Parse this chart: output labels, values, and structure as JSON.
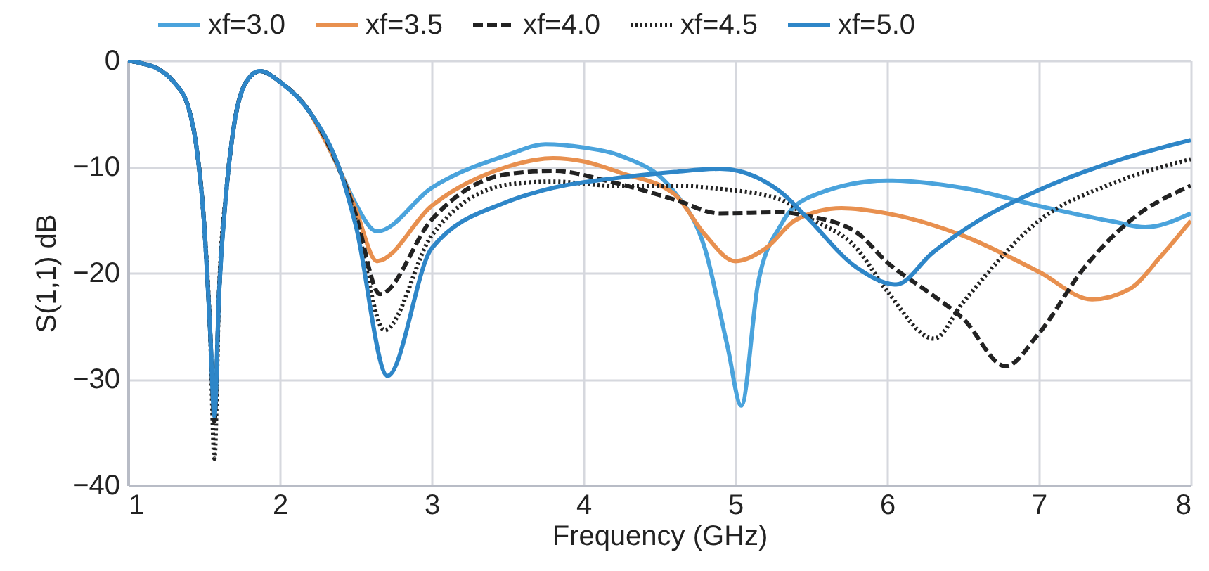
{
  "chart_data": {
    "type": "line",
    "xlabel": "Frequency (GHz)",
    "ylabel": "S(1,1) dB",
    "xlim": [
      1,
      8
    ],
    "xticks": [
      1,
      2,
      3,
      4,
      5,
      6,
      7,
      8
    ],
    "ylim": [
      -40,
      0
    ],
    "yticks": [
      -40,
      -30,
      -20,
      -10,
      0
    ],
    "grid": true,
    "legend": "top",
    "marker": "none",
    "series": [
      {
        "name": "xf=3.0",
        "color": "#4aa3dc",
        "line_style": "solid",
        "x": [
          1,
          1.1,
          1.2,
          1.3,
          1.4,
          1.45,
          1.5,
          1.54,
          1.57,
          1.6,
          1.65,
          1.7,
          1.78,
          1.87,
          2,
          2.2,
          2.4,
          2.5,
          2.64,
          3,
          3.5,
          3.75,
          4,
          4.23,
          4.6,
          4.8,
          4.95,
          5.04,
          5.15,
          5.3,
          5.5,
          6,
          6.5,
          7,
          7.5,
          7.7,
          8
        ],
        "values": [
          0,
          -0.3,
          -0.8,
          -2,
          -4.5,
          -8,
          -15,
          -25,
          -33,
          -22,
          -12,
          -6,
          -2,
          -1,
          -2,
          -4.9,
          -10.5,
          -13.5,
          -16.1,
          -12,
          -8.9,
          -7.9,
          -8.2,
          -8.9,
          -12.4,
          -17.7,
          -27,
          -32.5,
          -21,
          -15.5,
          -12.8,
          -11.3,
          -12,
          -13.7,
          -15.2,
          -15.7,
          -14.4
        ]
      },
      {
        "name": "xf=3.5",
        "color": "#e8904f",
        "line_style": "solid",
        "x": [
          2.2,
          2.4,
          2.5,
          2.64,
          3,
          3.5,
          3.8,
          4,
          4.25,
          4.6,
          4.8,
          5,
          5.2,
          5.4,
          5.7,
          6,
          6.5,
          7,
          7.35,
          7.6,
          7.8,
          8
        ],
        "values": [
          -4.9,
          -10.5,
          -14,
          -18.9,
          -13.7,
          -10,
          -9.2,
          -9.5,
          -10.6,
          -12.6,
          -16.4,
          -18.9,
          -17.7,
          -15,
          -13.9,
          -14.4,
          -16.5,
          -19.9,
          -22.5,
          -21.5,
          -18.5,
          -15.1
        ]
      },
      {
        "name": "xf=4.0",
        "color": "#222222",
        "line_style": "dashed",
        "x": [
          1,
          1.1,
          1.2,
          1.3,
          1.4,
          1.45,
          1.5,
          1.54,
          1.57,
          1.6,
          1.65,
          1.7,
          1.78,
          1.87,
          2,
          2.2,
          2.4,
          2.5,
          2.66,
          3,
          3.5,
          3.8,
          4.2,
          4.6,
          4.9,
          5.3,
          5.46,
          5.8,
          6,
          6.3,
          6.5,
          6.78,
          7,
          7.3,
          7.6,
          8
        ],
        "values": [
          0,
          -0.3,
          -0.8,
          -2,
          -4.5,
          -8,
          -15,
          -25,
          -34,
          -22,
          -12,
          -6,
          -2,
          -1,
          -2,
          -4.9,
          -10.5,
          -14.5,
          -22,
          -15,
          -10.7,
          -10.4,
          -11.5,
          -13.1,
          -14.4,
          -14.3,
          -14.6,
          -16.2,
          -19,
          -22.1,
          -24.3,
          -28.8,
          -25.7,
          -19.5,
          -15.1,
          -11.8
        ]
      },
      {
        "name": "xf=4.5",
        "color": "#222222",
        "line_style": "dotted",
        "x": [
          1,
          1.1,
          1.2,
          1.3,
          1.4,
          1.45,
          1.5,
          1.54,
          1.57,
          1.6,
          1.65,
          1.7,
          1.78,
          1.87,
          2,
          2.2,
          2.4,
          2.5,
          2.69,
          3,
          3.5,
          3.8,
          4.2,
          4.6,
          4.9,
          5.3,
          5.46,
          5.8,
          6,
          6.31,
          6.5,
          7,
          7.5,
          8
        ],
        "values": [
          0,
          -0.3,
          -0.8,
          -2,
          -4.5,
          -8,
          -15,
          -25,
          -37.5,
          -22,
          -12,
          -6,
          -2,
          -1,
          -2,
          -4.9,
          -10.5,
          -15,
          -25.4,
          -16.5,
          -11.7,
          -11.4,
          -11.8,
          -11.8,
          -12.1,
          -13.1,
          -14.6,
          -17.7,
          -21.7,
          -26.2,
          -22.8,
          -15.1,
          -11.5,
          -9.3
        ]
      },
      {
        "name": "xf=5.0",
        "color": "#2e86c8",
        "line_style": "solid",
        "x": [
          1,
          1.1,
          1.2,
          1.3,
          1.4,
          1.45,
          1.5,
          1.54,
          1.57,
          1.6,
          1.65,
          1.7,
          1.78,
          1.87,
          2,
          2.2,
          2.4,
          2.5,
          2.71,
          3,
          3.5,
          3.8,
          4.2,
          4.6,
          4.9,
          5.3,
          5.46,
          5.8,
          6.06,
          6.3,
          6.6,
          7,
          7.5,
          8
        ],
        "values": [
          0,
          -0.3,
          -0.8,
          -2,
          -4.5,
          -8,
          -15,
          -25,
          -33.5,
          -22,
          -12,
          -6,
          -2,
          -1,
          -2,
          -4.9,
          -10.5,
          -15.5,
          -29.7,
          -17.7,
          -13.3,
          -12,
          -11.1,
          -10.5,
          -10.2,
          -12.4,
          -14.6,
          -19.5,
          -21.1,
          -18.1,
          -15.1,
          -12.2,
          -9.5,
          -7.5
        ]
      }
    ]
  }
}
